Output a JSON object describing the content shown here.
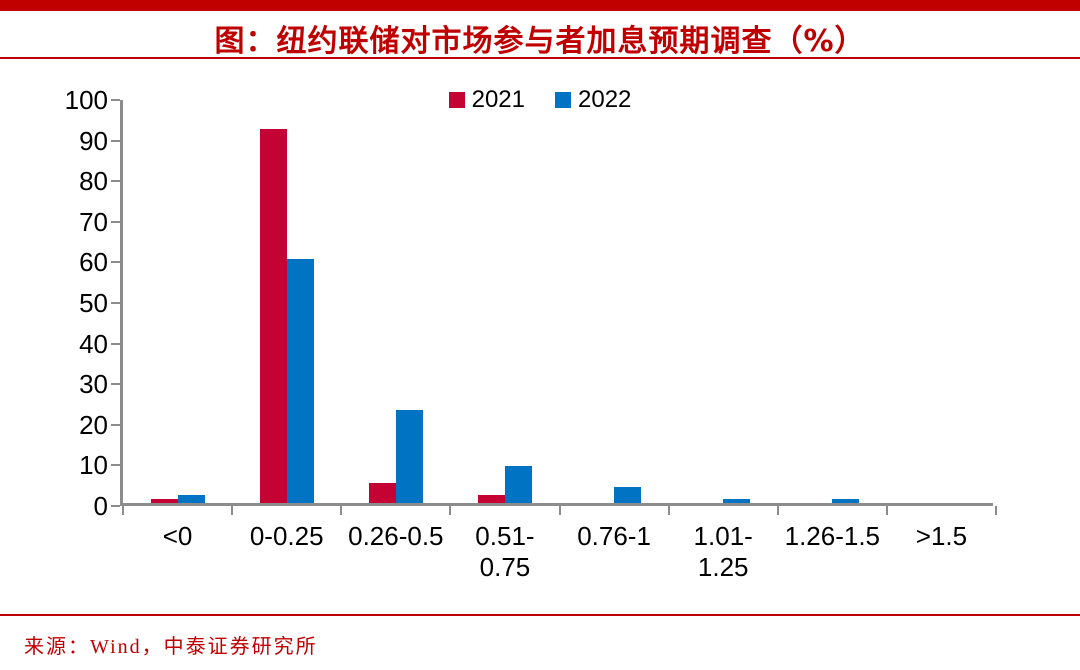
{
  "title": "图：纽约联储对市场参与者加息预期调查（%）",
  "source": "来源：Wind，中泰证券研究所",
  "colors": {
    "accent_red": "#C00000",
    "bar_2021": "#C40233",
    "bar_2022": "#0073C2",
    "axis": "#8C8C8C"
  },
  "chart_data": {
    "type": "bar",
    "title": "图：纽约联储对市场参与者加息预期调查（%）",
    "categories": [
      "<0",
      "0-0.25",
      "0.26-0.5",
      "0.51-0.75",
      "0.76-1",
      "1.01-1.25",
      "1.26-1.5",
      ">1.5"
    ],
    "categories_lines": [
      [
        "<0"
      ],
      [
        "0-0.25"
      ],
      [
        "0.26-0.5"
      ],
      [
        "0.51-",
        "0.75"
      ],
      [
        "0.76-1"
      ],
      [
        "1.01-",
        "1.25"
      ],
      [
        "1.26-1.5"
      ],
      [
        ">1.5"
      ]
    ],
    "series": [
      {
        "name": "2021",
        "color": "#C40233",
        "values": [
          1,
          92,
          5,
          2,
          0,
          0,
          0,
          0
        ]
      },
      {
        "name": "2022",
        "color": "#0073C2",
        "values": [
          2,
          60,
          23,
          9,
          4,
          1,
          1,
          0
        ]
      }
    ],
    "xlabel": "",
    "ylabel": "",
    "ylim": [
      0,
      100
    ],
    "ytick_step": 10,
    "grid": false,
    "legend_position": "top-center"
  }
}
